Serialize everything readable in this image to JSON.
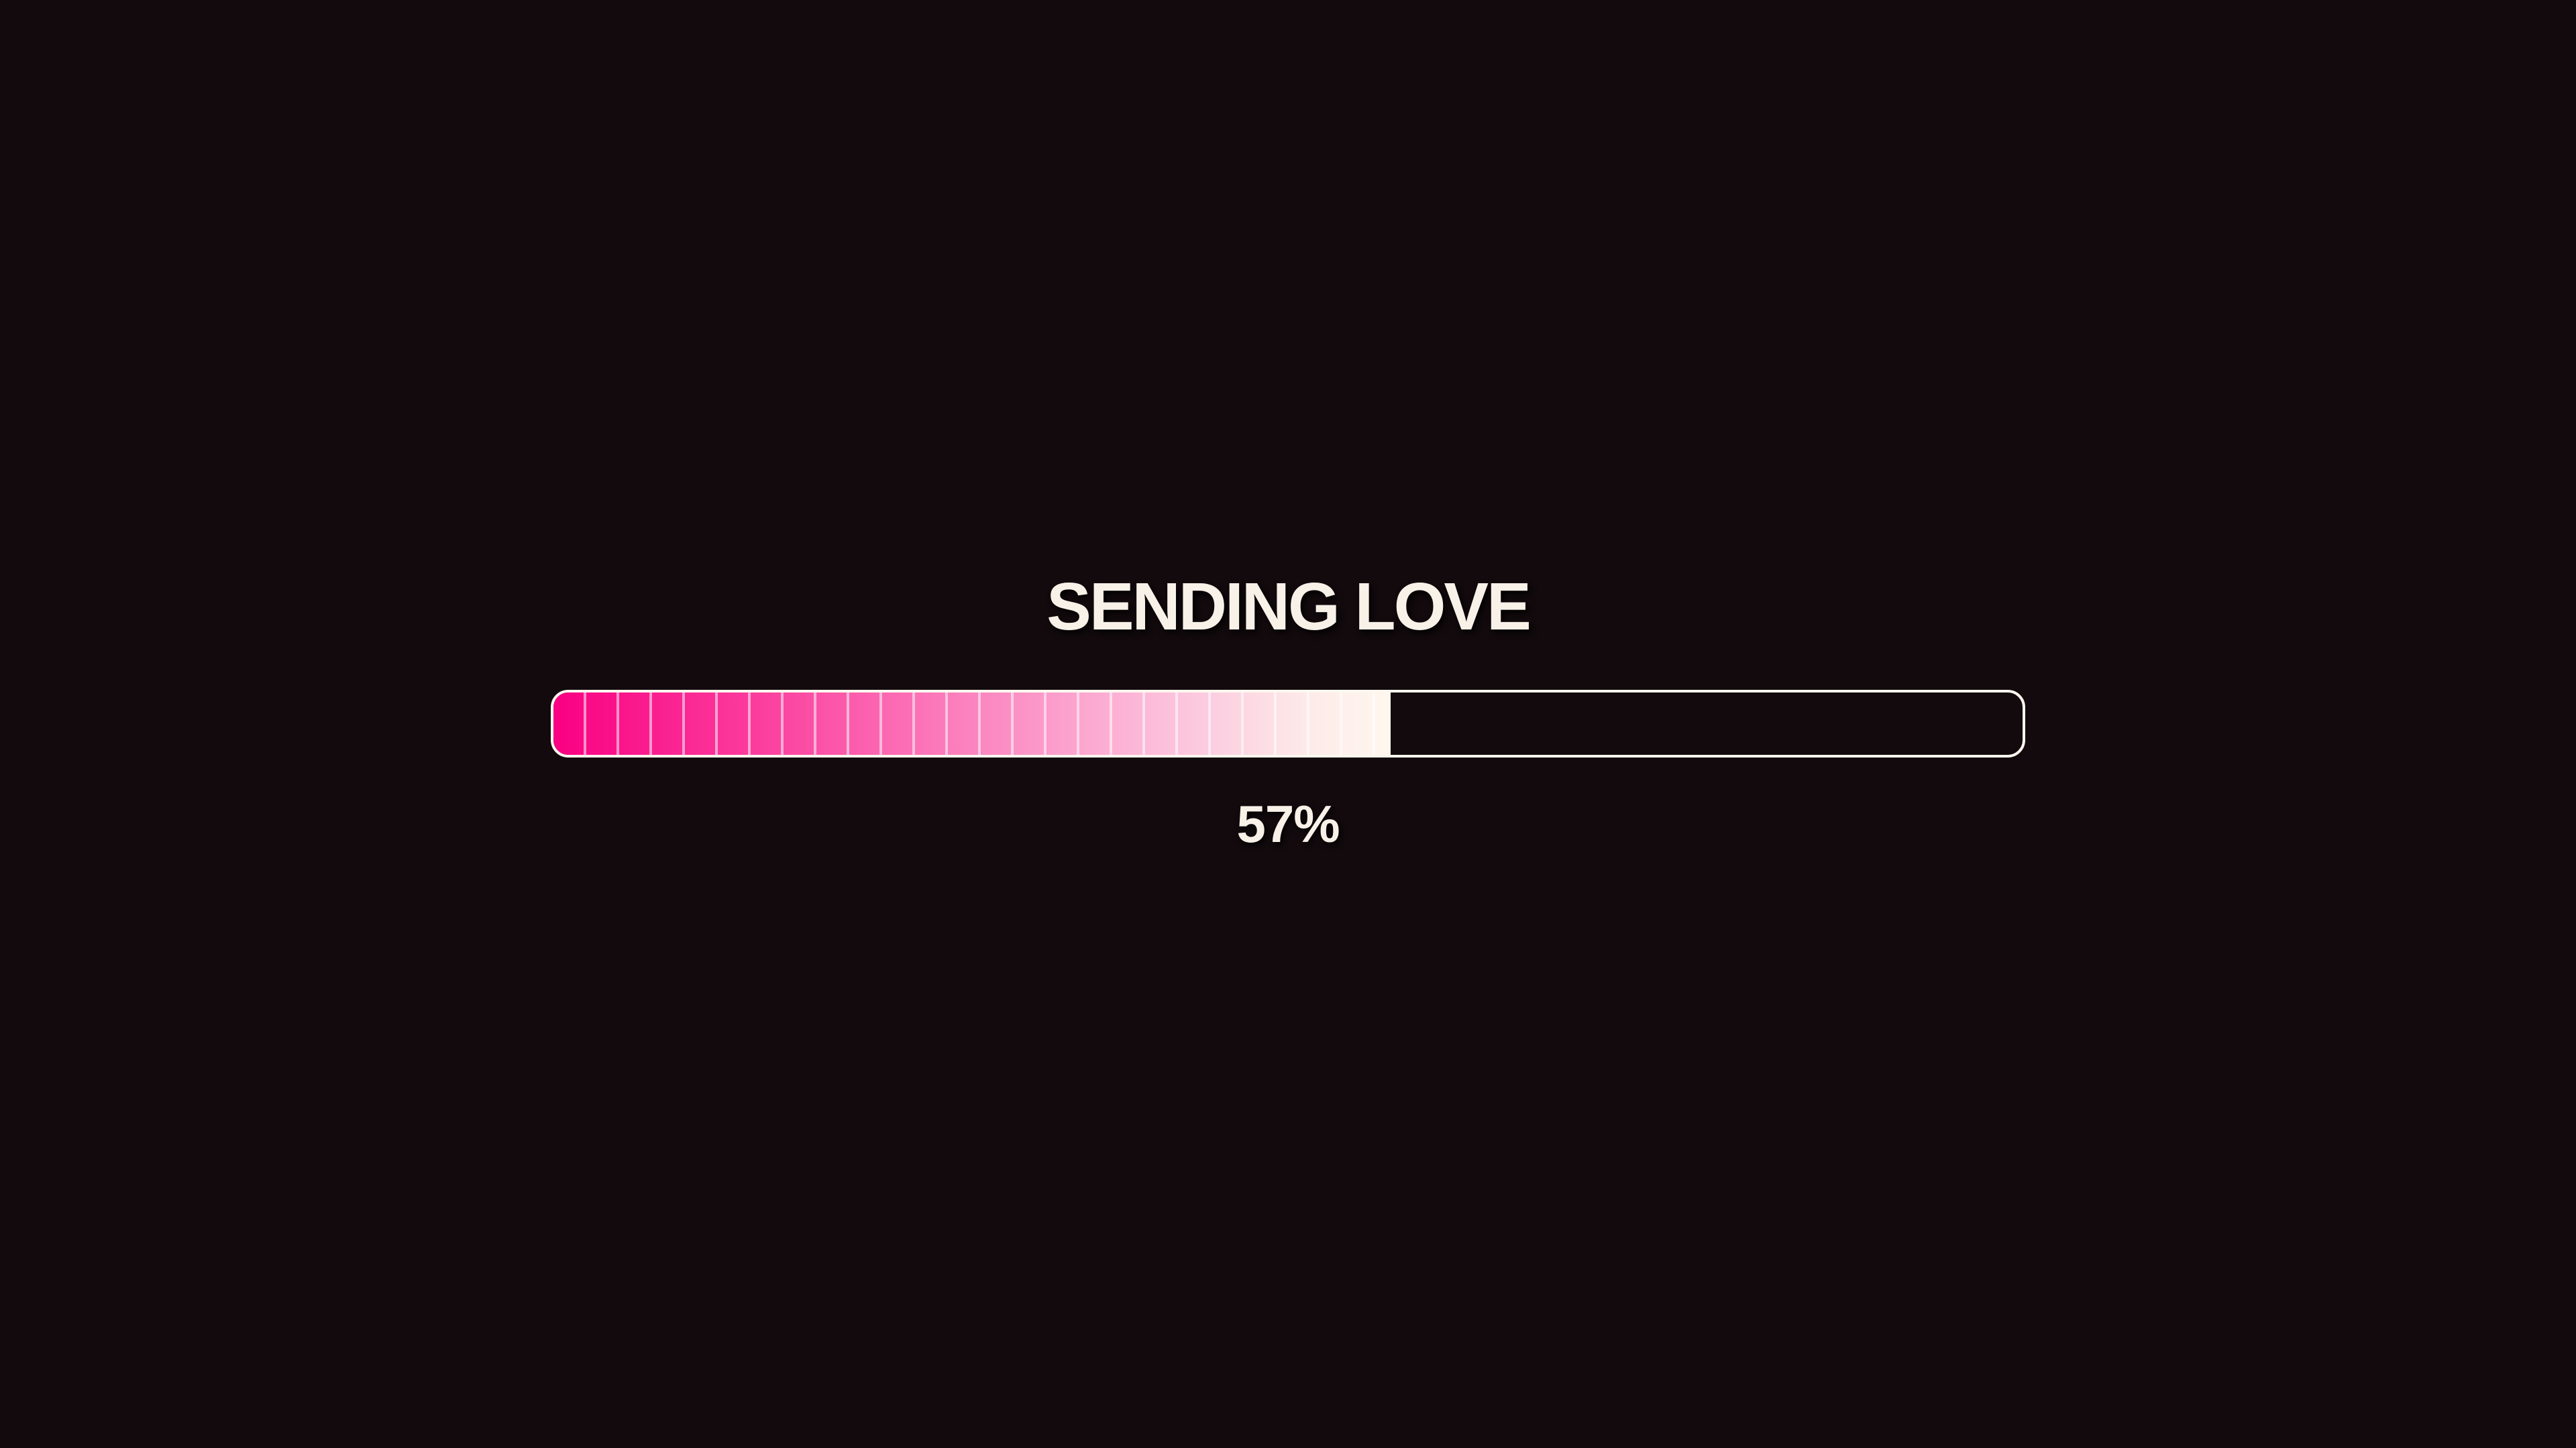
{
  "loader": {
    "title": "SENDING LOVE",
    "percent": 57,
    "percent_label": "57%"
  },
  "colors": {
    "background": "#120a0d",
    "text": "#f8f1e8",
    "bar_border": "#fcf7ef",
    "divider": "rgba(255,255,255,0.55)",
    "pink_start": "#fa0082",
    "pink_q1": "#fb3f9e",
    "pink_mid": "#fb84bf",
    "pink_q3": "#fcbdda",
    "pink_pale": "#fdeae9",
    "pink_end": "#fff7ee"
  }
}
